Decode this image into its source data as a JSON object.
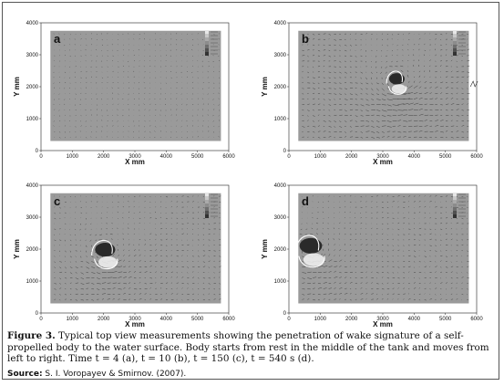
{
  "figure": {
    "panels": [
      {
        "label": "a",
        "time": 4
      },
      {
        "label": "b",
        "time": 10
      },
      {
        "label": "c",
        "time": 150
      },
      {
        "label": "d",
        "time": 540
      }
    ],
    "x_axis_label": "X mm",
    "y_axis_label": "Y mm",
    "x_ticks": [
      "0",
      "1000",
      "2000",
      "3000",
      "4000",
      "5000",
      "6000"
    ],
    "y_ticks": [
      "0",
      "1000",
      "2000",
      "3000",
      "4000"
    ]
  },
  "caption": {
    "label": "Figure 3.",
    "text": " Typical top view measurements showing the penetration of wake signature of a self-propelled body to the water surface. Body starts from rest in the middle of the tank and moves from left to right. Time t = 4 (a), t = 10 (b), t = 150 (c), t = 540 s (d)."
  },
  "source": {
    "label": "Source:",
    "text": " S. I. Voropayev & Smirnov. (2007)."
  },
  "colors": {
    "field_gray": "#9a9a9a",
    "vortex_dark": "#2a2a2a",
    "vortex_light": "#f2f2f2",
    "frame": "#555555"
  }
}
